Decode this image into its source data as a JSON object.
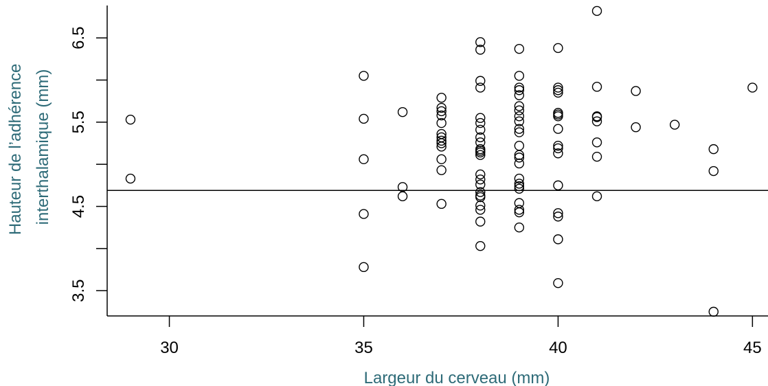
{
  "chart_data": {
    "type": "scatter",
    "xlabel": "Largeur du cerveau (mm)",
    "ylabel": [
      "Hauteur de l’adhérence",
      "interthalamique (mm)"
    ],
    "xlim": [
      28.4,
      45.4
    ],
    "ylim": [
      3.2,
      6.95
    ],
    "x_ticks": [
      30,
      35,
      40,
      45
    ],
    "y_ticks": [
      3.5,
      4,
      4.5,
      5,
      5.5,
      6,
      6.5
    ],
    "y_tick_labels": [
      "3.5",
      "",
      "4.5",
      "",
      "5.5",
      "",
      "6.5"
    ],
    "hline": 4.69,
    "grid": false,
    "legend": "none",
    "colors": {
      "axis_title": "#2e6b78",
      "points": "#000000"
    },
    "points": [
      [
        29,
        5.53
      ],
      [
        29,
        4.83
      ],
      [
        35,
        6.05
      ],
      [
        35,
        5.54
      ],
      [
        35,
        5.06
      ],
      [
        35,
        4.41
      ],
      [
        35,
        3.78
      ],
      [
        36,
        5.62
      ],
      [
        36,
        4.73
      ],
      [
        36,
        4.62
      ],
      [
        37,
        5.79
      ],
      [
        37,
        5.67
      ],
      [
        37,
        5.63
      ],
      [
        37,
        5.58
      ],
      [
        37,
        5.49
      ],
      [
        37,
        5.36
      ],
      [
        37,
        5.32
      ],
      [
        37,
        5.28
      ],
      [
        37,
        5.25
      ],
      [
        37,
        5.21
      ],
      [
        37,
        5.06
      ],
      [
        37,
        4.93
      ],
      [
        37,
        4.53
      ],
      [
        38,
        6.45
      ],
      [
        38,
        6.36
      ],
      [
        38,
        5.99
      ],
      [
        38,
        5.91
      ],
      [
        38,
        5.55
      ],
      [
        38,
        5.49
      ],
      [
        38,
        5.41
      ],
      [
        38,
        5.32
      ],
      [
        38,
        5.26
      ],
      [
        38,
        5.18
      ],
      [
        38,
        5.16
      ],
      [
        38,
        5.14
      ],
      [
        38,
        5.11
      ],
      [
        38,
        4.88
      ],
      [
        38,
        4.82
      ],
      [
        38,
        4.76
      ],
      [
        38,
        4.67
      ],
      [
        38,
        4.63
      ],
      [
        38,
        4.61
      ],
      [
        38,
        4.51
      ],
      [
        38,
        4.46
      ],
      [
        38,
        4.32
      ],
      [
        38,
        4.03
      ],
      [
        39,
        6.37
      ],
      [
        39,
        6.05
      ],
      [
        39,
        5.91
      ],
      [
        39,
        5.88
      ],
      [
        39,
        5.82
      ],
      [
        39,
        5.69
      ],
      [
        39,
        5.64
      ],
      [
        39,
        5.57
      ],
      [
        39,
        5.51
      ],
      [
        39,
        5.42
      ],
      [
        39,
        5.38
      ],
      [
        39,
        5.22
      ],
      [
        39,
        5.11
      ],
      [
        39,
        5.08
      ],
      [
        39,
        5.01
      ],
      [
        39,
        4.83
      ],
      [
        39,
        4.77
      ],
      [
        39,
        4.74
      ],
      [
        39,
        4.71
      ],
      [
        39,
        4.54
      ],
      [
        39,
        4.46
      ],
      [
        39,
        4.43
      ],
      [
        39,
        4.25
      ],
      [
        40,
        6.38
      ],
      [
        40,
        5.91
      ],
      [
        40,
        5.88
      ],
      [
        40,
        5.85
      ],
      [
        40,
        5.61
      ],
      [
        40,
        5.59
      ],
      [
        40,
        5.57
      ],
      [
        40,
        5.42
      ],
      [
        40,
        5.22
      ],
      [
        40,
        5.19
      ],
      [
        40,
        5.13
      ],
      [
        40,
        4.75
      ],
      [
        40,
        4.42
      ],
      [
        40,
        4.38
      ],
      [
        40,
        4.11
      ],
      [
        40,
        3.59
      ],
      [
        41,
        6.82
      ],
      [
        41,
        5.92
      ],
      [
        41,
        5.57
      ],
      [
        41,
        5.56
      ],
      [
        41,
        5.51
      ],
      [
        41,
        5.26
      ],
      [
        41,
        5.09
      ],
      [
        41,
        4.62
      ],
      [
        42,
        5.87
      ],
      [
        42,
        5.44
      ],
      [
        43,
        5.47
      ],
      [
        44,
        5.18
      ],
      [
        44,
        4.92
      ],
      [
        44,
        3.25
      ],
      [
        45,
        5.91
      ]
    ]
  }
}
